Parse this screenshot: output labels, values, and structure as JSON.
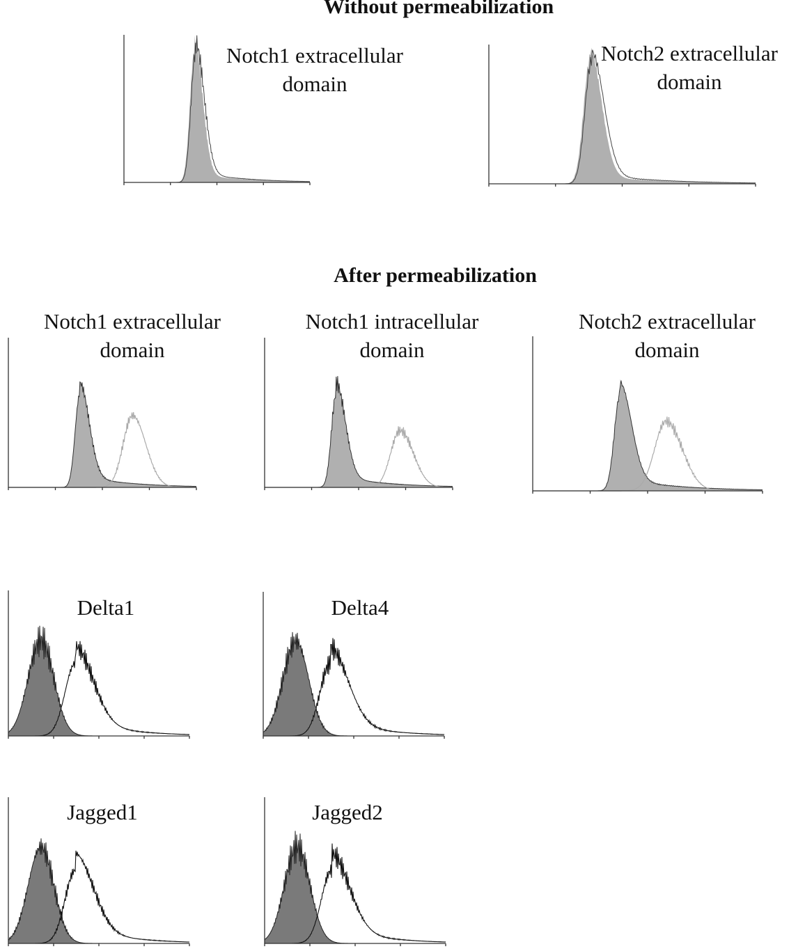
{
  "sections": [
    {
      "title": "Without permeabilization"
    },
    {
      "title": "After permeabilization"
    }
  ],
  "panels": [
    {
      "title": [
        "Notch1 extracellular",
        "domain"
      ]
    },
    {
      "title": [
        "Notch2 extracellular",
        "domain"
      ]
    },
    {
      "title": [
        "Notch1 extracellular",
        "domain"
      ]
    },
    {
      "title": [
        "Notch1 intracellular",
        "domain"
      ]
    },
    {
      "title": [
        "Notch2 extracellular",
        "domain"
      ]
    },
    {
      "title": [
        "Delta1"
      ]
    },
    {
      "title": [
        "Delta4"
      ]
    },
    {
      "title": [
        "Jagged1"
      ]
    },
    {
      "title": [
        "Jagged2"
      ]
    }
  ]
}
